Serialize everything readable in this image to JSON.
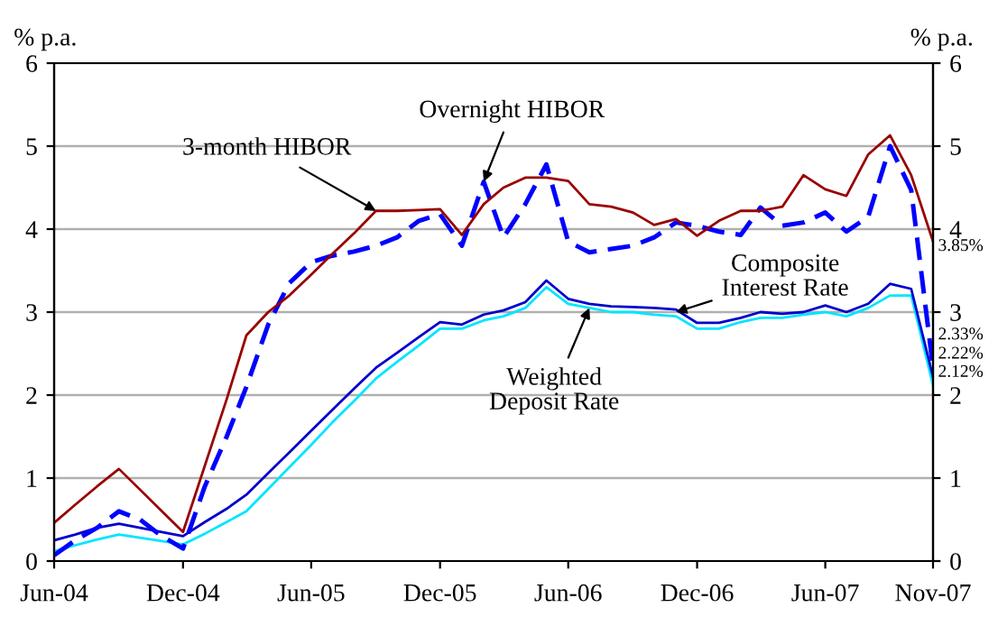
{
  "chart_data": {
    "type": "line",
    "x": [
      "2004-06",
      "2004-07",
      "2004-08",
      "2004-09",
      "2004-10",
      "2004-11",
      "2004-12",
      "2005-01",
      "2005-02",
      "2005-03",
      "2005-04",
      "2005-05",
      "2005-06",
      "2005-07",
      "2005-08",
      "2005-09",
      "2005-10",
      "2005-11",
      "2005-12",
      "2006-01",
      "2006-02",
      "2006-03",
      "2006-04",
      "2006-05",
      "2006-06",
      "2006-07",
      "2006-08",
      "2006-09",
      "2006-10",
      "2006-11",
      "2006-12",
      "2007-01",
      "2007-02",
      "2007-03",
      "2007-04",
      "2007-05",
      "2007-06",
      "2007-07",
      "2007-08",
      "2007-09",
      "2007-10",
      "2007-11"
    ],
    "series": [
      {
        "color": "#990000",
        "line_style": "solid",
        "values": [
          0.46,
          0.68,
          0.9,
          1.11,
          0.86,
          0.6,
          0.35,
          1.15,
          1.95,
          2.72,
          3.0,
          3.2,
          3.45,
          3.7,
          3.95,
          4.22,
          4.22,
          4.23,
          4.24,
          3.93,
          4.3,
          4.5,
          4.62,
          4.62,
          4.58,
          4.3,
          4.27,
          4.2,
          4.05,
          4.12,
          3.92,
          4.1,
          4.22,
          4.22,
          4.27,
          4.65,
          4.48,
          4.4,
          4.9,
          5.13,
          4.65,
          3.85
        ]
      },
      {
        "color": "#0000ff",
        "line_style": "dashed",
        "values": [
          0.07,
          0.25,
          0.4,
          0.6,
          0.5,
          0.3,
          0.15,
          0.9,
          1.5,
          2.1,
          2.85,
          3.35,
          3.6,
          3.68,
          3.73,
          3.8,
          3.9,
          4.1,
          4.18,
          3.8,
          4.57,
          3.9,
          4.3,
          4.78,
          3.85,
          3.72,
          3.76,
          3.8,
          3.9,
          4.08,
          4.04,
          3.97,
          3.93,
          4.26,
          4.04,
          4.08,
          4.2,
          3.97,
          4.15,
          5.0,
          4.47,
          2.33
        ]
      },
      {
        "color": "#0000cc",
        "line_style": "solid",
        "values": [
          0.25,
          0.32,
          0.4,
          0.45,
          0.4,
          0.35,
          0.3,
          0.47,
          0.63,
          0.8,
          1.06,
          1.31,
          1.57,
          1.82,
          2.08,
          2.33,
          2.51,
          2.7,
          2.88,
          2.85,
          2.97,
          3.02,
          3.12,
          3.38,
          3.16,
          3.1,
          3.07,
          3.06,
          3.05,
          3.03,
          2.87,
          2.87,
          2.93,
          3.0,
          2.98,
          3.0,
          3.08,
          3.0,
          3.1,
          3.34,
          3.28,
          2.22
        ]
      },
      {
        "color": "#00e5ff",
        "line_style": "solid",
        "values": [
          0.12,
          0.19,
          0.26,
          0.32,
          0.28,
          0.24,
          0.2,
          0.33,
          0.47,
          0.6,
          0.87,
          1.13,
          1.4,
          1.67,
          1.93,
          2.2,
          2.4,
          2.6,
          2.8,
          2.8,
          2.9,
          2.95,
          3.05,
          3.3,
          3.1,
          3.05,
          3.0,
          3.0,
          2.97,
          2.95,
          2.8,
          2.8,
          2.88,
          2.93,
          2.93,
          2.97,
          3.0,
          2.95,
          3.05,
          3.2,
          3.2,
          2.12
        ]
      }
    ],
    "ylabel": "% p.a.",
    "y2label": "% p.a.",
    "xlim": [
      "2004-06",
      "2007-11"
    ],
    "xticks": [
      {
        "value": "2004-06",
        "label": "Jun-04"
      },
      {
        "value": "2004-12",
        "label": "Dec-04"
      },
      {
        "value": "2005-06",
        "label": "Jun-05"
      },
      {
        "value": "2005-12",
        "label": "Dec-05"
      },
      {
        "value": "2006-06",
        "label": "Jun-06"
      },
      {
        "value": "2006-12",
        "label": "Dec-06"
      },
      {
        "value": "2007-06",
        "label": "Jun-07"
      },
      {
        "value": "2007-11",
        "label": "Nov-07"
      }
    ],
    "ylim": [
      0,
      6
    ],
    "yticks": [
      0,
      1,
      2,
      3,
      4,
      5,
      6
    ],
    "y2lim": [
      0,
      6
    ],
    "y2ticks": [
      0,
      1,
      2,
      3,
      4,
      5,
      6
    ],
    "grid": "y",
    "legend": false,
    "annotations": [
      {
        "text": "3-month HIBOR",
        "x": "2005-09",
        "y": 4.22
      },
      {
        "text": "Overnight HIBOR",
        "x": "2006-02",
        "y": 4.57
      },
      {
        "text": "Composite\nInterest Rate",
        "x": "2006-11",
        "y": 3.0
      },
      {
        "text": "Weighted\nDeposit Rate",
        "x": "2006-07",
        "y": 3.05
      },
      {
        "text": "3.85%",
        "x": "2007-11",
        "y": 3.85
      },
      {
        "text": "2.33%",
        "x": "2007-11",
        "y": 2.33
      },
      {
        "text": "2.22%",
        "x": "2007-11",
        "y": 2.22
      },
      {
        "text": "2.12%",
        "x": "2007-11",
        "y": 2.12
      }
    ]
  }
}
